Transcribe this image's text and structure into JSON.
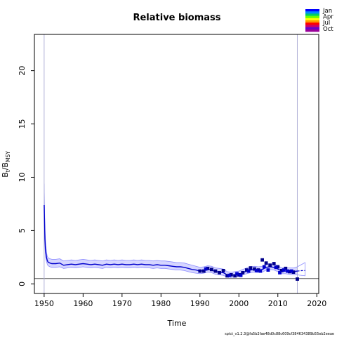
{
  "chart_data": {
    "type": "line",
    "title": "Relative biomass",
    "xlabel": "Time",
    "ylabel_main": "B",
    "ylabel_sub1": "t",
    "ylabel_sub2": "MSY",
    "xlim": [
      1947.5,
      2020.5
    ],
    "ylim": [
      -0.9,
      23.4
    ],
    "x_ticks": [
      1950,
      1960,
      1970,
      1980,
      1990,
      2000,
      2010,
      2020
    ],
    "y_ticks": [
      0,
      5,
      10,
      15,
      20
    ],
    "reference_line_y": 0.5,
    "vertical_lines_x": [
      1950,
      2015
    ],
    "estimate_series": {
      "name": "",
      "x": [
        1950.0,
        1950.2,
        1950.4,
        1950.6,
        1950.8,
        1951.0,
        1951.5,
        1952,
        1953,
        1954,
        1955,
        1956,
        1957,
        1958,
        1959,
        1960,
        1961,
        1962,
        1963,
        1964,
        1965,
        1966,
        1967,
        1968,
        1969,
        1970,
        1971,
        1972,
        1973,
        1974,
        1975,
        1976,
        1977,
        1978,
        1979,
        1980,
        1981,
        1982,
        1983,
        1984,
        1985,
        1986,
        1987,
        1988,
        1989,
        1990,
        1991,
        1992,
        1993,
        1994,
        1995,
        1996,
        1997,
        1998,
        1999,
        2000,
        2001,
        2002,
        2003,
        2004,
        2005,
        2006,
        2007,
        2008,
        2009,
        2010,
        2011,
        2012,
        2013,
        2014,
        2015
      ],
      "y": [
        7.4,
        4.2,
        3.0,
        2.5,
        2.2,
        2.05,
        1.95,
        1.9,
        1.9,
        1.95,
        1.75,
        1.8,
        1.85,
        1.8,
        1.85,
        1.9,
        1.85,
        1.8,
        1.85,
        1.8,
        1.75,
        1.85,
        1.8,
        1.85,
        1.8,
        1.85,
        1.8,
        1.8,
        1.85,
        1.8,
        1.85,
        1.8,
        1.8,
        1.75,
        1.8,
        1.75,
        1.75,
        1.7,
        1.65,
        1.6,
        1.6,
        1.55,
        1.45,
        1.35,
        1.3,
        1.2,
        1.25,
        1.35,
        1.3,
        1.15,
        1.1,
        1.05,
        0.85,
        0.8,
        0.85,
        0.9,
        1.05,
        1.2,
        1.3,
        1.35,
        1.3,
        1.35,
        1.55,
        1.6,
        1.55,
        1.4,
        1.2,
        1.2,
        1.15,
        1.15,
        1.2
      ]
    },
    "ci_lower": [
      5.6,
      3.4,
      2.5,
      2.1,
      1.85,
      1.7,
      1.6,
      1.55,
      1.55,
      1.6,
      1.45,
      1.5,
      1.55,
      1.5,
      1.55,
      1.6,
      1.55,
      1.5,
      1.55,
      1.5,
      1.45,
      1.55,
      1.5,
      1.55,
      1.5,
      1.55,
      1.5,
      1.5,
      1.55,
      1.5,
      1.55,
      1.5,
      1.5,
      1.45,
      1.5,
      1.45,
      1.45,
      1.4,
      1.35,
      1.3,
      1.3,
      1.25,
      1.15,
      1.05,
      1.0,
      0.95,
      1.0,
      1.1,
      1.05,
      0.9,
      0.85,
      0.8,
      0.65,
      0.6,
      0.65,
      0.7,
      0.85,
      0.95,
      1.05,
      1.1,
      1.05,
      1.1,
      1.3,
      1.35,
      1.3,
      1.15,
      0.95,
      0.95,
      0.9,
      0.85,
      0.85
    ],
    "ci_upper": [
      9.4,
      5.2,
      3.6,
      3.0,
      2.6,
      2.45,
      2.35,
      2.3,
      2.3,
      2.35,
      2.15,
      2.2,
      2.25,
      2.2,
      2.25,
      2.3,
      2.25,
      2.2,
      2.25,
      2.2,
      2.15,
      2.25,
      2.2,
      2.25,
      2.2,
      2.25,
      2.2,
      2.2,
      2.25,
      2.2,
      2.25,
      2.2,
      2.2,
      2.15,
      2.2,
      2.15,
      2.15,
      2.1,
      2.05,
      2.0,
      2.0,
      1.95,
      1.85,
      1.75,
      1.65,
      1.55,
      1.6,
      1.7,
      1.65,
      1.5,
      1.45,
      1.4,
      1.15,
      1.1,
      1.15,
      1.2,
      1.35,
      1.5,
      1.6,
      1.65,
      1.6,
      1.65,
      1.85,
      1.9,
      1.85,
      1.7,
      1.5,
      1.5,
      1.5,
      1.5,
      1.6
    ],
    "forecast_series": {
      "x": [
        2015,
        2015.5,
        2016,
        2016.5,
        2017
      ],
      "y": [
        1.2,
        1.22,
        1.24,
        1.25,
        1.25
      ],
      "ci_lower": [
        0.85,
        0.82,
        0.8,
        0.78,
        0.76
      ],
      "ci_upper": [
        1.6,
        1.7,
        1.8,
        1.9,
        2.0
      ]
    },
    "observations": {
      "x": [
        1990,
        1991,
        1992,
        1993,
        1994,
        1995,
        1996,
        1997,
        1998,
        1999,
        2000,
        2001,
        2002,
        2003,
        2004,
        2005,
        2006,
        2007,
        2008,
        2009,
        2010,
        2011,
        2012,
        2013,
        2014,
        2015,
        1991.5,
        1997.5,
        1999.5,
        2000.5,
        2002.5,
        2004.5,
        2005.5,
        2006.5,
        2007.5,
        2009.5,
        2010.5,
        2011.5,
        2012.5,
        2013.5
      ],
      "y": [
        1.2,
        1.2,
        1.45,
        1.35,
        1.2,
        1.05,
        1.25,
        0.75,
        0.85,
        0.75,
        0.85,
        1.05,
        1.3,
        1.5,
        1.4,
        1.3,
        2.25,
        1.95,
        1.75,
        1.9,
        1.6,
        1.25,
        1.45,
        1.15,
        1.1,
        0.45,
        1.4,
        0.8,
        0.95,
        0.8,
        1.2,
        1.25,
        1.2,
        1.6,
        1.3,
        1.55,
        1.05,
        1.3,
        1.2,
        1.2
      ],
      "colors": [
        "#00008b",
        "#00008b",
        "#00008b",
        "#00008b",
        "#00008b",
        "#00008b",
        "#00008b",
        "#00008b",
        "#00008b",
        "#00008b",
        "#00008b",
        "#00008b",
        "#00008b",
        "#00008b",
        "#00008b",
        "#00008b",
        "#00008b",
        "#00008b",
        "#00008b",
        "#00008b",
        "#00008b",
        "#00008b",
        "#00008b",
        "#00008b",
        "#00008b",
        "#00008b",
        "#0000cd",
        "#0000cd",
        "#0000cd",
        "#0000cd",
        "#0000cd",
        "#0000cd",
        "#0000cd",
        "#0000cd",
        "#0000cd",
        "#0000cd",
        "#0000cd",
        "#0000cd",
        "#0000cd",
        "#0000cd"
      ]
    },
    "legend": {
      "placement": "top-right",
      "labels": [
        "Jan",
        "Apr",
        "Jul",
        "Oct"
      ],
      "gradient_colors": [
        "#0000ff",
        "#0088ff",
        "#00cc66",
        "#66ff00",
        "#ffff00",
        "#ff9900",
        "#ff0000",
        "#cc0066",
        "#6600cc",
        "#990099"
      ]
    },
    "colors": {
      "line": "#0000cd",
      "ci_fill": "#c8c8ff",
      "ci_border": "#8c8cff",
      "reference_line": "#555555",
      "vline": "#b0b0d8"
    },
    "footer": "spict_v1.2.3@fa5b2fae48d0c88c609cf384634389b55eb2eeae"
  }
}
